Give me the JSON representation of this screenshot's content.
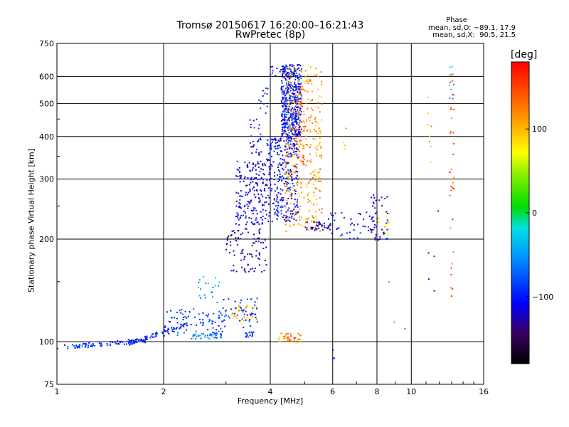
{
  "title_line1": "Tromsø 20150617 16:20:00–16:21:43",
  "title_line2": "RwPretec (8p)",
  "phase_stats": {
    "header": "Phase",
    "o_line": "mean, sd,O: −89.1, 17.9",
    "x_line": "mean, sd,X:  90.5, 21.5"
  },
  "colorbar": {
    "unit": "[deg]",
    "range": [
      -180,
      180
    ],
    "ticks": [
      100,
      0,
      -100
    ],
    "tick_labels": [
      "100",
      "0",
      "−100"
    ]
  },
  "chart_data": {
    "type": "scatter",
    "xlabel": "Frequency [MHz]",
    "ylabel": "Stationary phase Virtual Height [km]",
    "xscale": "log",
    "yscale": "log",
    "xlim": [
      1,
      16
    ],
    "ylim": [
      75,
      750
    ],
    "xticks": [
      1,
      2,
      4,
      6,
      8,
      10,
      16
    ],
    "yticks": [
      75,
      100,
      200,
      300,
      400,
      500,
      600,
      750
    ],
    "grid": true,
    "clusters": [
      {
        "f_range": [
          1.0,
          1.8
        ],
        "h_range": [
          96,
          101
        ],
        "phase": -95,
        "n": 90,
        "shape": "ramp"
      },
      {
        "f_range": [
          1.6,
          2.3
        ],
        "h_range": [
          99,
          112
        ],
        "phase": -95,
        "n": 70,
        "shape": "ramp"
      },
      {
        "f_range": [
          2.0,
          3.0
        ],
        "h_range": [
          104,
          125
        ],
        "phase": -90,
        "n": 90,
        "shape": "fill"
      },
      {
        "f_range": [
          2.4,
          3.0
        ],
        "h_range": [
          102,
          106
        ],
        "phase": -55,
        "n": 30,
        "shape": "fill"
      },
      {
        "f_range": [
          2.5,
          2.9
        ],
        "h_range": [
          130,
          155
        ],
        "phase": -45,
        "n": 20,
        "shape": "fill"
      },
      {
        "f_range": [
          2.9,
          3.7
        ],
        "h_range": [
          110,
          135
        ],
        "phase": -95,
        "n": 50,
        "shape": "fill"
      },
      {
        "f_range": [
          3.1,
          3.7
        ],
        "h_range": [
          112,
          128
        ],
        "phase": 100,
        "n": 30,
        "shape": "fill"
      },
      {
        "f_range": [
          3.4,
          3.6
        ],
        "h_range": [
          103,
          108
        ],
        "phase": -90,
        "n": 15,
        "shape": "fill"
      },
      {
        "f_range": [
          3.0,
          3.9
        ],
        "h_range": [
          160,
          215
        ],
        "phase": -130,
        "n": 90,
        "shape": "fill"
      },
      {
        "f_range": [
          3.2,
          3.9
        ],
        "h_range": [
          220,
          340
        ],
        "phase": -110,
        "n": 180,
        "shape": "fill"
      },
      {
        "f_range": [
          3.5,
          3.8
        ],
        "h_range": [
          350,
          450
        ],
        "phase": -105,
        "n": 30,
        "shape": "fill"
      },
      {
        "f_range": [
          3.7,
          4.0
        ],
        "h_range": [
          460,
          560
        ],
        "phase": -100,
        "n": 12,
        "shape": "fill"
      },
      {
        "f_range": [
          3.9,
          4.8
        ],
        "h_range": [
          225,
          400
        ],
        "phase": -105,
        "n": 300,
        "shape": "fill"
      },
      {
        "f_range": [
          4.3,
          4.9
        ],
        "h_range": [
          400,
          650
        ],
        "phase": -100,
        "n": 450,
        "shape": "fill"
      },
      {
        "f_range": [
          4.0,
          4.3
        ],
        "h_range": [
          600,
          650
        ],
        "phase": -95,
        "n": 10,
        "shape": "fill"
      },
      {
        "f_range": [
          4.4,
          5.6
        ],
        "h_range": [
          210,
          650
        ],
        "phase": 110,
        "n": 350,
        "shape": "fill"
      },
      {
        "f_range": [
          4.8,
          5.1
        ],
        "h_range": [
          330,
          560
        ],
        "phase": 145,
        "n": 40,
        "shape": "fill"
      },
      {
        "f_range": [
          5.0,
          5.9
        ],
        "h_range": [
          212,
          225
        ],
        "phase": -130,
        "n": 35,
        "shape": "fill"
      },
      {
        "f_range": [
          4.2,
          4.9
        ],
        "h_range": [
          99,
          106
        ],
        "phase": 105,
        "n": 30,
        "shape": "fill"
      },
      {
        "f_range": [
          4.2,
          4.9
        ],
        "h_range": [
          100,
          104
        ],
        "phase": 150,
        "n": 10,
        "shape": "fill"
      },
      {
        "f_range": [
          5.8,
          8.0
        ],
        "h_range": [
          200,
          240
        ],
        "phase": -110,
        "n": 45,
        "shape": "fill"
      },
      {
        "f_range": [
          7.7,
          8.6
        ],
        "h_range": [
          198,
          270
        ],
        "phase": -120,
        "n": 45,
        "shape": "fill"
      },
      {
        "f_range": [
          7.9,
          8.7
        ],
        "h_range": [
          205,
          245
        ],
        "phase": 90,
        "n": 14,
        "shape": "fill"
      },
      {
        "f_range": [
          11.0,
          11.4
        ],
        "h_range": [
          320,
          530
        ],
        "phase": 110,
        "n": 8,
        "shape": "fill"
      },
      {
        "f_range": [
          12.8,
          13.2
        ],
        "h_range": [
          130,
          650
        ],
        "phase": 140,
        "n": 35,
        "shape": "fill"
      },
      {
        "f_range": [
          12.8,
          13.2
        ],
        "h_range": [
          500,
          650
        ],
        "phase": -40,
        "n": 8,
        "shape": "fill"
      },
      {
        "f_range": [
          5.9,
          6.1
        ],
        "h_range": [
          86,
          97
        ],
        "phase": -100,
        "n": 4,
        "shape": "fill"
      },
      {
        "f_range": [
          6.4,
          7.0
        ],
        "h_range": [
          360,
          450
        ],
        "phase": 105,
        "n": 4,
        "shape": "fill"
      },
      {
        "f_range": [
          8.4,
          10.2
        ],
        "h_range": [
          89,
          160
        ],
        "phase": 140,
        "n": 3,
        "shape": "fill"
      },
      {
        "f_range": [
          10.5,
          12.5
        ],
        "h_range": [
          140,
          380
        ],
        "phase": -110,
        "n": 5,
        "shape": "fill"
      }
    ]
  }
}
